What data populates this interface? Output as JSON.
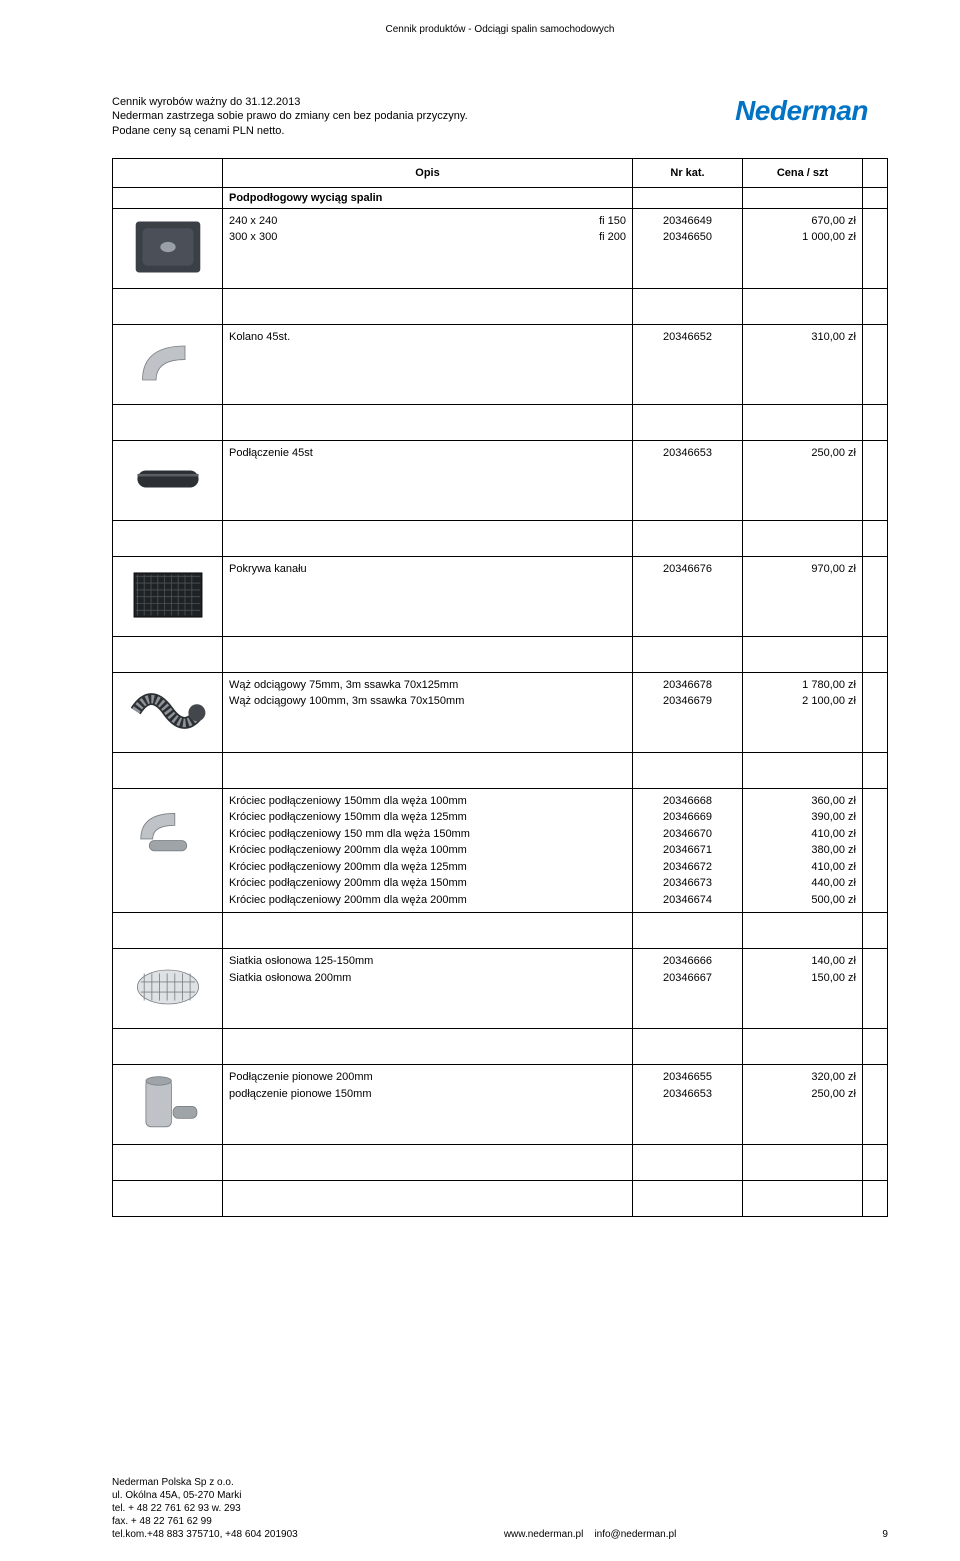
{
  "meta": {
    "page_header": "Cennik produktów - Odciągi spalin samochodowych",
    "valid_line": "Cennik wyrobów ważny do 31.12.2013",
    "reserve_line": "Nederman zastrzega sobie prawo do zmiany cen bez podania przyczyny.",
    "netto_line": "Podane ceny są cenami PLN netto.",
    "logo_text": "Nederman"
  },
  "columns": {
    "opis": "Opis",
    "nr": "Nr kat.",
    "cena": "Cena / szt"
  },
  "section_title": "Podpodłogowy wyciąg spalin",
  "groups": [
    {
      "image": "plate",
      "rows": [
        {
          "col_a": "240 x 240",
          "col_b": "fi 150",
          "nr": "20346649",
          "cena": "670,00 zł"
        },
        {
          "col_a": "300 x 300",
          "col_b": "fi 200",
          "nr": "20346650",
          "cena": "1 000,00 zł"
        }
      ]
    },
    {
      "image": "elbow",
      "rows": [
        {
          "col_a": "Kolano 45st.",
          "col_b": "",
          "nr": "20346652",
          "cena": "310,00 zł"
        }
      ]
    },
    {
      "image": "tube",
      "rows": [
        {
          "col_a": "Podłączenie 45st",
          "col_b": "",
          "nr": "20346653",
          "cena": "250,00 zł"
        }
      ]
    },
    {
      "image": "grate",
      "rows": [
        {
          "col_a": "Pokrywa kanału",
          "col_b": "",
          "nr": "20346676",
          "cena": "970,00 zł"
        }
      ]
    },
    {
      "image": "hose",
      "rows": [
        {
          "col_a": "Wąż odciągowy 75mm, 3m ssawka 70x125mm",
          "col_b": "",
          "nr": "20346678",
          "cena": "1 780,00 zł"
        },
        {
          "col_a": "Wąż odciągowy 100mm, 3m ssawka 70x150mm",
          "col_b": "",
          "nr": "20346679",
          "cena": "2 100,00 zł"
        }
      ]
    },
    {
      "image": "krociec",
      "rows": [
        {
          "col_a": "Króciec podłączeniowy 150mm dla węża 100mm",
          "col_b": "",
          "nr": "20346668",
          "cena": "360,00 zł"
        },
        {
          "col_a": "Króciec podłączeniowy 150mm dla węża 125mm",
          "col_b": "",
          "nr": "20346669",
          "cena": "390,00 zł"
        },
        {
          "col_a": "Króciec podłączeniowy 150 mm dla węża 150mm",
          "col_b": "",
          "nr": "20346670",
          "cena": "410,00 zł"
        },
        {
          "col_a": "Króciec podłączeniowy 200mm dla węża 100mm",
          "col_b": "",
          "nr": "20346671",
          "cena": "380,00 zł"
        },
        {
          "col_a": "Króciec podłączeniowy 200mm dla węża 125mm",
          "col_b": "",
          "nr": "20346672",
          "cena": "410,00 zł"
        },
        {
          "col_a": "Króciec podłączeniowy 200mm dla węża 150mm",
          "col_b": "",
          "nr": "20346673",
          "cena": "440,00 zł"
        },
        {
          "col_a": "Króciec podłączeniowy 200mm dla węża 200mm",
          "col_b": "",
          "nr": "20346674",
          "cena": "500,00 zł"
        }
      ]
    },
    {
      "image": "mesh",
      "rows": [
        {
          "col_a": "Siatkia osłonowa 125-150mm",
          "col_b": "",
          "nr": "20346666",
          "cena": "140,00 zł"
        },
        {
          "col_a": "Siatkia osłonowa 200mm",
          "col_b": "",
          "nr": "20346667",
          "cena": "150,00 zł"
        }
      ]
    },
    {
      "image": "vpipe",
      "rows": [
        {
          "col_a": "Podłączenie pionowe 200mm",
          "col_b": "",
          "nr": "20346655",
          "cena": "320,00 zł"
        },
        {
          "col_a": "podłączenie pionowe 150mm",
          "col_b": "",
          "nr": "20346653",
          "cena": "250,00 zł"
        }
      ]
    }
  ],
  "footer": {
    "company": "Nederman Polska Sp z o.o.",
    "addr": "ul. Okólna 45A, 05-270 Marki",
    "tel": "tel. + 48 22 761 62 93 w. 293",
    "fax": "fax. + 48 22 761 62 99",
    "mobile": "tel.kom.+48 883 375710, +48 604 201903",
    "web": "www.nederman.pl",
    "email": "info@nederman.pl",
    "page_no": "9"
  }
}
